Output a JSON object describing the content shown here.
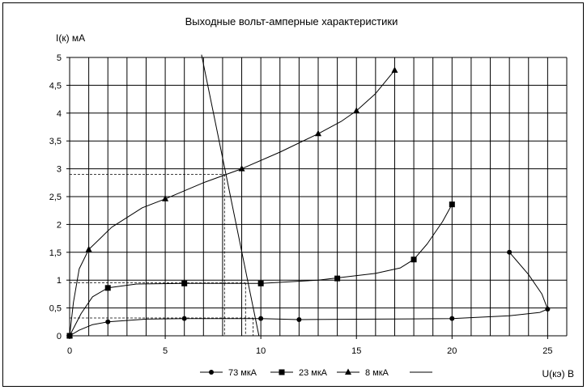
{
  "chart_data": {
    "type": "line",
    "title": "Выходные вольт-амперные характеристики",
    "ylabel": "I(к) мА",
    "xlabel": "U(кэ) В",
    "xlim": [
      0,
      26
    ],
    "ylim": [
      0,
      5
    ],
    "x_ticks": [
      0,
      5,
      10,
      15,
      20,
      25
    ],
    "x_tick_labels": [
      "0",
      "5",
      "10",
      "15",
      "20",
      "25"
    ],
    "y_ticks": [
      0,
      0.5,
      1,
      1.5,
      2,
      2.5,
      3,
      3.5,
      4,
      4.5,
      5
    ],
    "y_tick_labels": [
      "0",
      "0,5",
      "1",
      "1,5",
      "2",
      "2,5",
      "3",
      "3,5",
      "4",
      "4,5",
      "5"
    ],
    "grid": true,
    "legend_position": "bottom",
    "series": [
      {
        "name": "73 мкА",
        "marker": "circle",
        "points": [
          [
            0,
            0
          ],
          [
            2,
            0.25
          ],
          [
            6,
            0.31
          ],
          [
            10,
            0.31
          ],
          [
            12,
            0.29
          ],
          [
            20,
            0.31
          ],
          [
            25,
            0.48
          ],
          [
            23,
            1.5
          ]
        ],
        "curve": [
          [
            0,
            0
          ],
          [
            0.5,
            0.1
          ],
          [
            1.2,
            0.2
          ],
          [
            2,
            0.25
          ],
          [
            4,
            0.3
          ],
          [
            6,
            0.31
          ],
          [
            10,
            0.31
          ],
          [
            12,
            0.29
          ],
          [
            16,
            0.3
          ],
          [
            20,
            0.31
          ],
          [
            23,
            0.36
          ],
          [
            24.6,
            0.42
          ],
          [
            25,
            0.48
          ],
          [
            24.7,
            0.75
          ],
          [
            24,
            1.1
          ],
          [
            23,
            1.5
          ]
        ]
      },
      {
        "name": "23 мкА",
        "marker": "square",
        "points": [
          [
            0,
            0
          ],
          [
            2,
            0.86
          ],
          [
            6,
            0.94
          ],
          [
            10,
            0.94
          ],
          [
            14,
            1.03
          ],
          [
            18,
            1.37
          ],
          [
            20,
            2.36
          ]
        ],
        "curve": [
          [
            0,
            0
          ],
          [
            0.6,
            0.4
          ],
          [
            1.2,
            0.7
          ],
          [
            2,
            0.86
          ],
          [
            3.5,
            0.93
          ],
          [
            6,
            0.94
          ],
          [
            10,
            0.94
          ],
          [
            13,
            1.0
          ],
          [
            16,
            1.12
          ],
          [
            17.3,
            1.22
          ],
          [
            18,
            1.37
          ],
          [
            18.7,
            1.65
          ],
          [
            19.5,
            2.05
          ],
          [
            20,
            2.36
          ]
        ]
      },
      {
        "name": "8 мкА",
        "marker": "triangle",
        "points": [
          [
            0,
            0
          ],
          [
            1,
            1.55
          ],
          [
            5,
            2.46
          ],
          [
            9,
            3.0
          ],
          [
            13,
            3.63
          ],
          [
            15,
            4.04
          ],
          [
            17,
            4.77
          ]
        ],
        "curve": [
          [
            0,
            0
          ],
          [
            0.2,
            0.6
          ],
          [
            0.5,
            1.2
          ],
          [
            1,
            1.55
          ],
          [
            2.2,
            1.95
          ],
          [
            3.8,
            2.3
          ],
          [
            5,
            2.46
          ],
          [
            7,
            2.75
          ],
          [
            9,
            3.0
          ],
          [
            11,
            3.3
          ],
          [
            13,
            3.63
          ],
          [
            14.2,
            3.85
          ],
          [
            15,
            4.04
          ],
          [
            16,
            4.35
          ],
          [
            17,
            4.77
          ]
        ]
      },
      {
        "name": "",
        "marker": "none",
        "points": [
          [
            6.9,
            5.05
          ],
          [
            9.9,
            0
          ]
        ],
        "curve": [
          [
            6.9,
            5.05
          ],
          [
            9.9,
            0
          ]
        ]
      }
    ],
    "guides": [
      {
        "points": [
          [
            0,
            2.9
          ],
          [
            8.1,
            2.9
          ]
        ]
      },
      {
        "points": [
          [
            8.1,
            2.9
          ],
          [
            8.1,
            0
          ]
        ]
      },
      {
        "points": [
          [
            0,
            0.95
          ],
          [
            9.2,
            0.95
          ]
        ]
      },
      {
        "points": [
          [
            9.2,
            0.95
          ],
          [
            9.2,
            0
          ]
        ]
      },
      {
        "points": [
          [
            0,
            0.32
          ],
          [
            9.6,
            0.32
          ]
        ]
      },
      {
        "points": [
          [
            9.6,
            0.32
          ],
          [
            9.6,
            0
          ]
        ]
      }
    ]
  }
}
